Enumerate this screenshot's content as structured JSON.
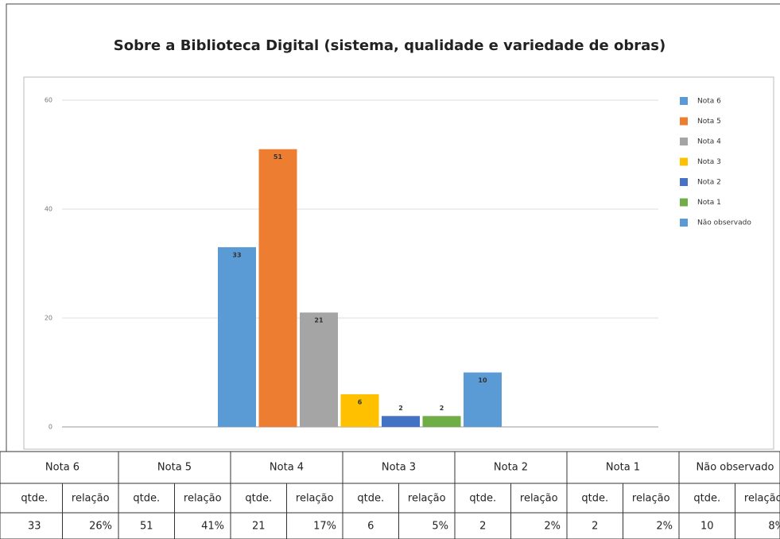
{
  "chart_data": {
    "type": "bar",
    "title": "Sobre a Biblioteca Digital (sistema, qualidade e variedade de obras)",
    "series": [
      {
        "name": "Nota 6",
        "color": "#5b9bd5",
        "values": [
          33
        ]
      },
      {
        "name": "Nota 5",
        "color": "#ed7d31",
        "values": [
          51
        ]
      },
      {
        "name": "Nota 4",
        "color": "#a5a5a5",
        "values": [
          21
        ]
      },
      {
        "name": "Nota 3",
        "color": "#ffc000",
        "values": [
          6
        ]
      },
      {
        "name": "Nota 2",
        "color": "#4472c4",
        "values": [
          2
        ]
      },
      {
        "name": "Nota 1",
        "color": "#70ad47",
        "values": [
          2
        ]
      },
      {
        "name": "Não observado",
        "color": "#5b9bd5",
        "values": [
          10
        ]
      }
    ],
    "ylim": [
      0,
      60
    ],
    "yticks": [
      0,
      20,
      40,
      60
    ],
    "grid": true,
    "legend": "right"
  },
  "table": {
    "columns": [
      "qtde.",
      "relação"
    ],
    "shares": [
      "26%",
      "41%",
      "17%",
      "5%",
      "2%",
      "2%",
      "8%"
    ]
  }
}
